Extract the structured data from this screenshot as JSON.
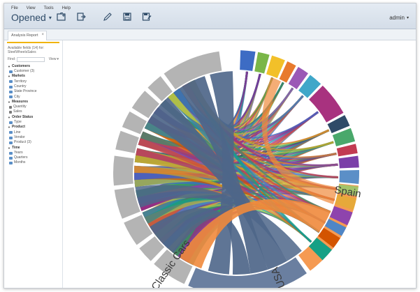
{
  "menu": [
    "File",
    "View",
    "Tools",
    "Help"
  ],
  "report_state": "Opened",
  "user": "admin",
  "tab": {
    "label": "Analysis Report",
    "close": "×"
  },
  "sidebar": {
    "available_label": "Available fields (14) for: SteelWheelsSales",
    "find_label": "Find:",
    "view_label": "View",
    "groups": [
      {
        "name": "Customers",
        "items": [
          {
            "label": "Customer (3)",
            "kind": "dim"
          }
        ]
      },
      {
        "name": "Markets",
        "items": [
          {
            "label": "Territory",
            "kind": "dim"
          },
          {
            "label": "Country",
            "kind": "dim"
          },
          {
            "label": "State Province",
            "kind": "dim"
          },
          {
            "label": "City",
            "kind": "dim"
          }
        ]
      },
      {
        "name": "Measures",
        "items": [
          {
            "label": "Quantity",
            "kind": "meas"
          },
          {
            "label": "Sales",
            "kind": "meas"
          }
        ]
      },
      {
        "name": "Order Status",
        "items": [
          {
            "label": "Type",
            "kind": "dim"
          }
        ]
      },
      {
        "name": "Product",
        "items": [
          {
            "label": "Line",
            "kind": "dim"
          },
          {
            "label": "Vendor",
            "kind": "dim"
          },
          {
            "label": "Product (3)",
            "kind": "dim"
          }
        ]
      },
      {
        "name": "Time",
        "items": [
          {
            "label": "Years",
            "kind": "dim"
          },
          {
            "label": "Quarters",
            "kind": "dim"
          },
          {
            "label": "Months",
            "kind": "dim"
          }
        ]
      }
    ]
  },
  "chart_data": {
    "type": "chord",
    "arc_labels": [
      "Spain",
      "USA",
      "Classic Cars"
    ],
    "arc_colors": {
      "usa": "#6a7fa0",
      "spain": "#f59a52",
      "classic_cars": "#b4b4b4",
      "ribbon_main": "#4e6689",
      "ribbon_spain": "#f08a3c"
    }
  }
}
